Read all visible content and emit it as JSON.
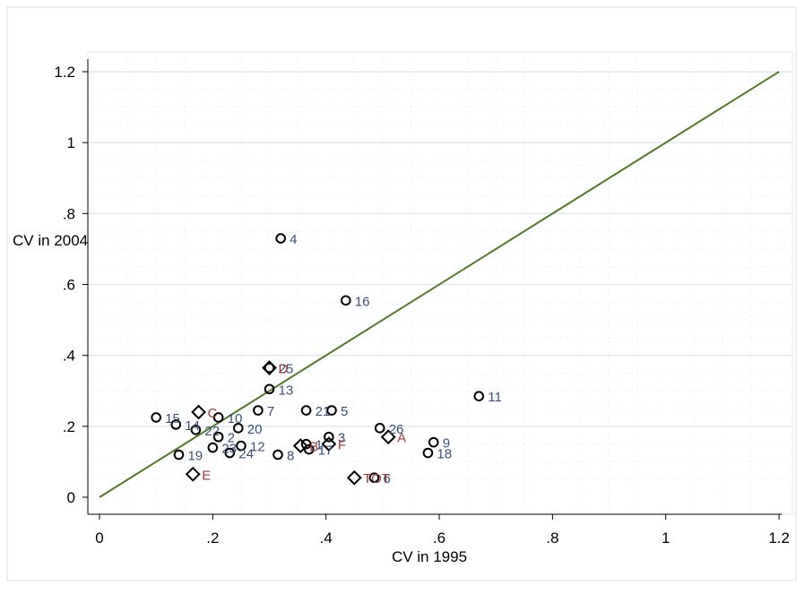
{
  "chart_data": {
    "type": "scatter",
    "xlabel": "CV in 1995",
    "ylabel": "CV in 2004",
    "xlim": [
      0,
      1.2
    ],
    "ylim": [
      0,
      1.2
    ],
    "x_ticks": [
      "0",
      ".2",
      ".4",
      ".6",
      ".8",
      "1",
      "1.2"
    ],
    "y_ticks": [
      "0",
      ".2",
      ".4",
      ".6",
      ".8",
      "1",
      "1.2"
    ],
    "x_tick_values": [
      0,
      0.2,
      0.4,
      0.6,
      0.8,
      1.0,
      1.2
    ],
    "y_tick_values": [
      0,
      0.2,
      0.4,
      0.6,
      0.8,
      1.0,
      1.2
    ],
    "grid": true,
    "reference_line": {
      "from": [
        0,
        0
      ],
      "to": [
        1.2,
        1.2
      ],
      "color": "#4f7a28"
    },
    "colors": {
      "circle_label": "#3a5078",
      "diamond_label": "#9c3a3a",
      "marker_stroke": "#000000",
      "background": "#ffffff",
      "grid": "#dfe4ee"
    },
    "series": [
      {
        "marker": "circle",
        "points": [
          {
            "label": "2",
            "x": 0.21,
            "y": 0.17
          },
          {
            "label": "3",
            "x": 0.405,
            "y": 0.17
          },
          {
            "label": "4",
            "x": 0.32,
            "y": 0.73
          },
          {
            "label": "5",
            "x": 0.41,
            "y": 0.245
          },
          {
            "label": "6",
            "x": 0.485,
            "y": 0.055
          },
          {
            "label": "7",
            "x": 0.28,
            "y": 0.245
          },
          {
            "label": "8",
            "x": 0.315,
            "y": 0.12
          },
          {
            "label": "9",
            "x": 0.59,
            "y": 0.155
          },
          {
            "label": "10",
            "x": 0.21,
            "y": 0.225
          },
          {
            "label": "11",
            "x": 0.67,
            "y": 0.285
          },
          {
            "label": "12",
            "x": 0.25,
            "y": 0.145
          },
          {
            "label": "13",
            "x": 0.3,
            "y": 0.305
          },
          {
            "label": "14",
            "x": 0.135,
            "y": 0.205
          },
          {
            "label": "15",
            "x": 0.1,
            "y": 0.225
          },
          {
            "label": "16",
            "x": 0.435,
            "y": 0.555
          },
          {
            "label": "17",
            "x": 0.37,
            "y": 0.135
          },
          {
            "label": "18",
            "x": 0.58,
            "y": 0.125
          },
          {
            "label": "19",
            "x": 0.14,
            "y": 0.12
          },
          {
            "label": "20",
            "x": 0.245,
            "y": 0.195
          },
          {
            "label": "21",
            "x": 0.365,
            "y": 0.245
          },
          {
            "label": "22",
            "x": 0.17,
            "y": 0.19
          },
          {
            "label": "23",
            "x": 0.2,
            "y": 0.14
          },
          {
            "label": "24",
            "x": 0.23,
            "y": 0.125
          },
          {
            "label": "25",
            "x": 0.3,
            "y": 0.365
          },
          {
            "label": "26",
            "x": 0.495,
            "y": 0.195
          },
          {
            "label": "1",
            "x": 0.365,
            "y": 0.15
          }
        ]
      },
      {
        "marker": "diamond",
        "points": [
          {
            "label": "A",
            "x": 0.51,
            "y": 0.17
          },
          {
            "label": "B",
            "x": 0.355,
            "y": 0.145
          },
          {
            "label": "C",
            "x": 0.175,
            "y": 0.24
          },
          {
            "label": "D",
            "x": 0.3,
            "y": 0.365
          },
          {
            "label": "E",
            "x": 0.165,
            "y": 0.065
          },
          {
            "label": "F",
            "x": 0.405,
            "y": 0.15
          },
          {
            "label": "TOT",
            "x": 0.45,
            "y": 0.055
          }
        ]
      }
    ]
  }
}
